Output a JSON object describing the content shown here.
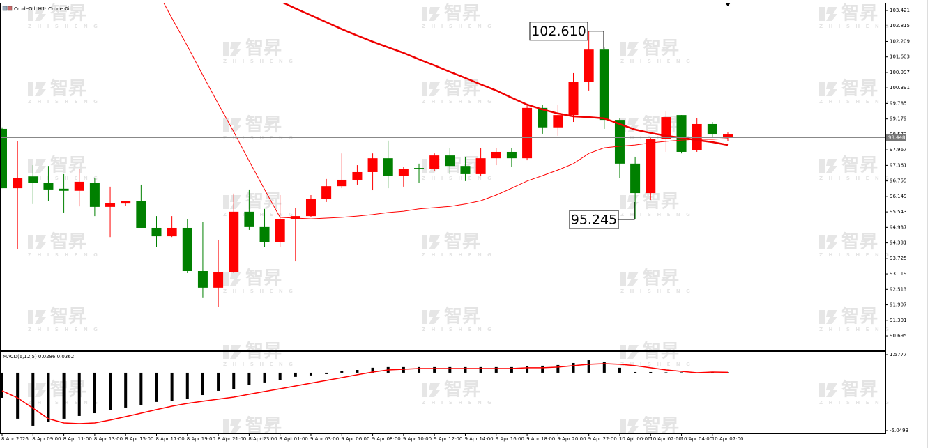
{
  "chart_data": [
    {
      "type": "candlestick",
      "title": "CrudeOil, H1:  Crude Oil",
      "categories": [
        "8 Apr 2026",
        null,
        "8 Apr 09:00",
        null,
        "8 Apr 11:00",
        null,
        "8 Apr 13:00",
        null,
        "8 Apr 15:00",
        null,
        "8 Apr 17:00",
        null,
        "8 Apr 19:00",
        null,
        "8 Apr 21:00",
        null,
        "8 Apr 23:00",
        null,
        "9 Apr 01:00",
        null,
        "9 Apr 03:00",
        null,
        "9 Apr 06:00",
        null,
        "9 Apr 08:00",
        null,
        "9 Apr 10:00",
        null,
        "9 Apr 12:00",
        null,
        "9 Apr 14:00",
        null,
        "9 Apr 16:00",
        null,
        "9 Apr 18:00",
        null,
        "9 Apr 20:00",
        null,
        "9 Apr 22:00",
        null,
        "10 Apr 00:00",
        null,
        "10 Apr 02:00",
        null,
        "10 Apr 04:00",
        null,
        "10 Apr 07:00",
        null
      ],
      "open": [
        98.79,
        96.47,
        96.93,
        96.69,
        96.45,
        96.37,
        96.69,
        95.74,
        95.87,
        95.96,
        94.92,
        94.59,
        94.92,
        93.23,
        92.58,
        93.2,
        95.55,
        94.95,
        94.37,
        95.27,
        95.38,
        96.04,
        96.55,
        96.8,
        97.1,
        97.64,
        96.96,
        97.26,
        97.21,
        97.75,
        97.34,
        97.02,
        97.64,
        97.89,
        97.64,
        99.61,
        98.85,
        99.33,
        100.64,
        101.89,
        99.14,
        97.43,
        96.28,
        98.38,
        99.33,
        97.97,
        98.98,
        98.44
      ],
      "high": [
        98.85,
        98.3,
        97.37,
        97.34,
        97.02,
        97.21,
        96.88,
        96.53,
        95.96,
        96.61,
        95.38,
        95.38,
        95.25,
        95.16,
        94.43,
        96.26,
        96.42,
        95.66,
        96.2,
        95.71,
        96.2,
        96.83,
        97.83,
        97.37,
        97.83,
        98.33,
        97.29,
        97.43,
        97.83,
        98.05,
        97.7,
        98.05,
        98.05,
        98.05,
        99.74,
        99.74,
        99.74,
        100.97,
        102.61,
        101.97,
        99.2,
        97.7,
        98.44,
        99.47,
        99.33,
        99.2,
        99.06,
        98.65
      ],
      "low": [
        96.47,
        94.1,
        95.85,
        95.96,
        95.52,
        95.76,
        95.38,
        94.56,
        95.79,
        94.92,
        94.16,
        94.56,
        93.15,
        92.2,
        91.84,
        93.15,
        94.84,
        94.16,
        94.16,
        93.61,
        95.33,
        95.93,
        96.47,
        96.61,
        96.39,
        96.47,
        96.53,
        96.69,
        97.13,
        97.02,
        96.75,
        96.96,
        97.37,
        97.29,
        97.56,
        98.6,
        98.52,
        99.06,
        100.29,
        98.79,
        96.88,
        95.25,
        96.01,
        97.89,
        97.83,
        97.89,
        98.44,
        98.3
      ],
      "close": [
        96.47,
        96.88,
        96.69,
        96.42,
        96.37,
        96.72,
        95.74,
        95.9,
        95.96,
        94.92,
        94.59,
        94.92,
        93.23,
        92.58,
        93.2,
        95.55,
        94.95,
        94.37,
        95.27,
        95.38,
        96.04,
        96.55,
        96.8,
        97.1,
        97.64,
        96.96,
        97.23,
        97.21,
        97.75,
        97.34,
        97.02,
        97.64,
        97.89,
        97.64,
        99.61,
        98.85,
        99.33,
        100.64,
        101.89,
        99.14,
        97.43,
        96.28,
        98.38,
        99.25,
        97.89,
        98.98,
        98.57,
        98.57
      ],
      "up_color": "#ff0000",
      "down_color": "#008000",
      "series": [
        {
          "color": "#ff0000",
          "values": [
            null,
            null,
            null,
            null,
            null,
            null,
            null,
            null,
            null,
            null,
            104.24,
            103.12,
            102.03,
            100.89,
            99.77,
            98.68,
            97.53,
            96.42,
            95.33,
            95.3,
            95.27,
            95.3,
            95.33,
            95.38,
            95.44,
            95.52,
            95.57,
            95.66,
            95.71,
            95.76,
            95.85,
            95.98,
            96.2,
            96.47,
            96.75,
            96.96,
            97.18,
            97.43,
            97.83,
            98.05,
            98.11,
            98.16,
            98.24,
            98.3,
            98.35,
            98.38,
            98.38,
            98.41
          ]
        },
        {
          "color": "#ee0000",
          "values": [
            null,
            null,
            null,
            null,
            null,
            null,
            null,
            null,
            null,
            null,
            null,
            null,
            null,
            null,
            null,
            null,
            null,
            null,
            103.78,
            103.5,
            103.23,
            102.96,
            102.69,
            102.44,
            102.2,
            101.98,
            101.76,
            101.51,
            101.27,
            101.02,
            100.78,
            100.53,
            100.29,
            100.01,
            99.74,
            99.55,
            99.39,
            99.28,
            99.25,
            99.2,
            98.98,
            98.76,
            98.63,
            98.52,
            98.44,
            98.35,
            98.27,
            98.16
          ]
        }
      ],
      "last_price": 98.448,
      "annotations": [
        {
          "value": 102.61,
          "label": "102.610"
        },
        95.245
      ],
      "ylim": [
        90.124,
        103.693
      ],
      "yticks": [
        103.421,
        102.815,
        102.209,
        101.603,
        100.997,
        100.391,
        99.785,
        99.179,
        98.573,
        97.967,
        97.361,
        96.755,
        96.149,
        95.543,
        94.937,
        94.331,
        93.725,
        93.119,
        92.513,
        91.907,
        91.301,
        90.695
      ],
      "watermark": {
        "cn": "智昇",
        "en": "Z H I S H E N G"
      }
    },
    {
      "type": "macd",
      "label": "MACD(6,12,5) 0.0286 0.0362",
      "values": [
        -2.19,
        -4.01,
        -4.62,
        -4.32,
        -4.01,
        -3.77,
        -3.53,
        -3.28,
        -3.04,
        -2.8,
        -2.55,
        -2.49,
        -2.31,
        -1.95,
        -1.58,
        -1.46,
        -1.09,
        -0.85,
        -0.67,
        -0.36,
        -0.24,
        -0.12,
        0.12,
        0.24,
        0.43,
        0.49,
        0.49,
        0.49,
        0.49,
        0.49,
        0.49,
        0.49,
        0.49,
        0.49,
        0.55,
        0.61,
        0.67,
        0.85,
        1.09,
        0.91,
        0.43,
        0.06,
        0.06,
        0.03,
        0.03,
        0.03,
        0.03,
        0.0286
      ],
      "color": "#000000",
      "series": [
        {
          "color": "#ff0000",
          "values": [
            -1.58,
            -2.19,
            -3.1,
            -4.01,
            -4.38,
            -4.44,
            -4.38,
            -4.13,
            -3.83,
            -3.53,
            -3.22,
            -2.92,
            -2.68,
            -2.49,
            -2.31,
            -2.13,
            -1.88,
            -1.64,
            -1.4,
            -1.16,
            -0.91,
            -0.67,
            -0.43,
            -0.18,
            0.06,
            0.24,
            0.3,
            0.36,
            0.36,
            0.36,
            0.36,
            0.36,
            0.36,
            0.36,
            0.43,
            0.43,
            0.49,
            0.61,
            0.73,
            0.79,
            0.73,
            0.61,
            0.43,
            0.24,
            0.12,
            0.0,
            0.06,
            0.0362
          ]
        }
      ],
      "ylim": [
        -5.292,
        1.821
      ],
      "yticks": [
        1.5777,
        -5.0493
      ]
    }
  ]
}
